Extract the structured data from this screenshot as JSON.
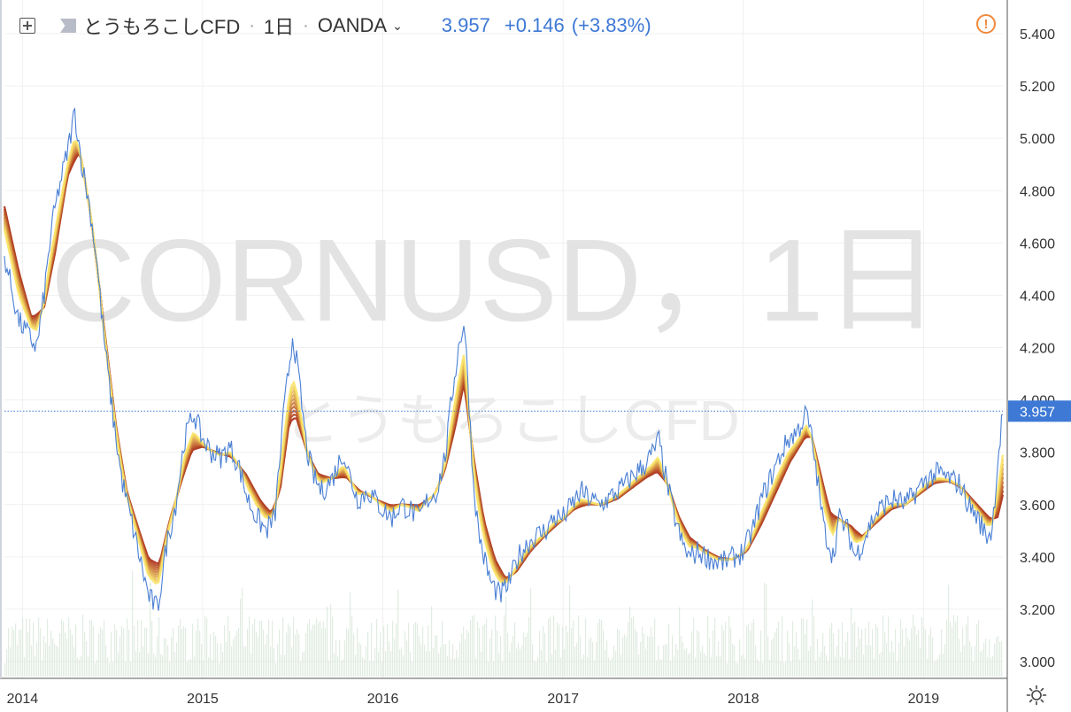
{
  "header": {
    "symbol_title": "とうもろこしCFD",
    "interval": "1日",
    "broker": "OANDA",
    "price": "3.957",
    "change": "+0.146",
    "change_pct": "(+3.83%)"
  },
  "watermark": {
    "symbol": "CORNUSD，1日",
    "description": "とうもろこしCFD"
  },
  "colors": {
    "price_line": "#4a7fd4",
    "ribbon_dark": "#a82a14",
    "ribbon_light": "#f8e36a",
    "price_label_bg": "#3d79d5",
    "volume": "#d9e7db"
  },
  "icons": {
    "add": "plus-box-icon",
    "flag": "flag-icon",
    "alert": "alert-icon",
    "settings": "gear-icon"
  },
  "chart_data": {
    "type": "line",
    "title": "とうもろこしCFD",
    "x_tick_labels": [
      "2014",
      "2015",
      "2016",
      "2017",
      "2018",
      "2019"
    ],
    "y_tick_labels": [
      "3.000",
      "3.200",
      "3.400",
      "3.600",
      "3.800",
      "4.000",
      "4.200",
      "4.400",
      "4.600",
      "4.800",
      "5.000",
      "5.200",
      "5.400"
    ],
    "ylim": [
      2.95,
      5.45
    ],
    "xlim": [
      2013.9,
      2019.44
    ],
    "last_price": 3.957,
    "grid": true,
    "series": [
      {
        "name": "price",
        "points": [
          [
            2013.9,
            4.55
          ],
          [
            2013.98,
            4.3
          ],
          [
            2014.03,
            4.25
          ],
          [
            2014.08,
            4.2
          ],
          [
            2014.12,
            4.4
          ],
          [
            2014.16,
            4.65
          ],
          [
            2014.2,
            4.8
          ],
          [
            2014.25,
            4.95
          ],
          [
            2014.29,
            5.1
          ],
          [
            2014.33,
            4.9
          ],
          [
            2014.37,
            4.75
          ],
          [
            2014.41,
            4.55
          ],
          [
            2014.45,
            4.25
          ],
          [
            2014.5,
            3.95
          ],
          [
            2014.55,
            3.7
          ],
          [
            2014.6,
            3.55
          ],
          [
            2014.65,
            3.4
          ],
          [
            2014.7,
            3.25
          ],
          [
            2014.75,
            3.2
          ],
          [
            2014.8,
            3.45
          ],
          [
            2014.85,
            3.6
          ],
          [
            2014.9,
            3.85
          ],
          [
            2014.95,
            3.95
          ],
          [
            2015.0,
            3.85
          ],
          [
            2015.05,
            3.8
          ],
          [
            2015.1,
            3.78
          ],
          [
            2015.15,
            3.82
          ],
          [
            2015.2,
            3.75
          ],
          [
            2015.25,
            3.62
          ],
          [
            2015.3,
            3.55
          ],
          [
            2015.35,
            3.5
          ],
          [
            2015.4,
            3.55
          ],
          [
            2015.45,
            3.95
          ],
          [
            2015.5,
            4.25
          ],
          [
            2015.53,
            4.1
          ],
          [
            2015.58,
            3.8
          ],
          [
            2015.62,
            3.7
          ],
          [
            2015.66,
            3.65
          ],
          [
            2015.72,
            3.7
          ],
          [
            2015.78,
            3.8
          ],
          [
            2015.82,
            3.7
          ],
          [
            2015.86,
            3.62
          ],
          [
            2015.92,
            3.65
          ],
          [
            2016.0,
            3.58
          ],
          [
            2016.05,
            3.55
          ],
          [
            2016.1,
            3.6
          ],
          [
            2016.15,
            3.58
          ],
          [
            2016.2,
            3.55
          ],
          [
            2016.25,
            3.62
          ],
          [
            2016.3,
            3.65
          ],
          [
            2016.35,
            3.8
          ],
          [
            2016.38,
            4.0
          ],
          [
            2016.42,
            4.2
          ],
          [
            2016.45,
            4.3
          ],
          [
            2016.47,
            4.1
          ],
          [
            2016.5,
            3.7
          ],
          [
            2016.53,
            3.5
          ],
          [
            2016.56,
            3.4
          ],
          [
            2016.6,
            3.3
          ],
          [
            2016.65,
            3.25
          ],
          [
            2016.7,
            3.3
          ],
          [
            2016.75,
            3.4
          ],
          [
            2016.8,
            3.45
          ],
          [
            2016.85,
            3.48
          ],
          [
            2016.9,
            3.5
          ],
          [
            2016.95,
            3.55
          ],
          [
            2017.0,
            3.55
          ],
          [
            2017.05,
            3.6
          ],
          [
            2017.1,
            3.65
          ],
          [
            2017.15,
            3.62
          ],
          [
            2017.2,
            3.6
          ],
          [
            2017.25,
            3.62
          ],
          [
            2017.3,
            3.65
          ],
          [
            2017.35,
            3.68
          ],
          [
            2017.4,
            3.72
          ],
          [
            2017.45,
            3.75
          ],
          [
            2017.5,
            3.8
          ],
          [
            2017.53,
            3.85
          ],
          [
            2017.57,
            3.7
          ],
          [
            2017.62,
            3.55
          ],
          [
            2017.66,
            3.45
          ],
          [
            2017.7,
            3.4
          ],
          [
            2017.75,
            3.42
          ],
          [
            2017.8,
            3.4
          ],
          [
            2017.85,
            3.38
          ],
          [
            2017.9,
            3.38
          ],
          [
            2017.95,
            3.4
          ],
          [
            2018.0,
            3.42
          ],
          [
            2018.05,
            3.5
          ],
          [
            2018.1,
            3.62
          ],
          [
            2018.15,
            3.7
          ],
          [
            2018.2,
            3.78
          ],
          [
            2018.25,
            3.85
          ],
          [
            2018.3,
            3.88
          ],
          [
            2018.35,
            3.95
          ],
          [
            2018.38,
            3.85
          ],
          [
            2018.42,
            3.65
          ],
          [
            2018.45,
            3.5
          ],
          [
            2018.5,
            3.4
          ],
          [
            2018.53,
            3.55
          ],
          [
            2018.58,
            3.5
          ],
          [
            2018.62,
            3.4
          ],
          [
            2018.66,
            3.45
          ],
          [
            2018.72,
            3.55
          ],
          [
            2018.78,
            3.6
          ],
          [
            2018.84,
            3.62
          ],
          [
            2018.9,
            3.6
          ],
          [
            2018.96,
            3.65
          ],
          [
            2019.02,
            3.7
          ],
          [
            2019.08,
            3.72
          ],
          [
            2019.14,
            3.7
          ],
          [
            2019.2,
            3.68
          ],
          [
            2019.25,
            3.6
          ],
          [
            2019.3,
            3.55
          ],
          [
            2019.35,
            3.48
          ],
          [
            2019.38,
            3.5
          ],
          [
            2019.41,
            3.75
          ],
          [
            2019.44,
            3.96
          ]
        ]
      },
      {
        "name": "ribbon_center",
        "points": [
          [
            2013.9,
            4.75
          ],
          [
            2013.98,
            4.5
          ],
          [
            2014.05,
            4.32
          ],
          [
            2014.12,
            4.35
          ],
          [
            2014.18,
            4.55
          ],
          [
            2014.25,
            4.85
          ],
          [
            2014.32,
            4.95
          ],
          [
            2014.38,
            4.7
          ],
          [
            2014.45,
            4.3
          ],
          [
            2014.52,
            3.9
          ],
          [
            2014.58,
            3.65
          ],
          [
            2014.65,
            3.5
          ],
          [
            2014.7,
            3.4
          ],
          [
            2014.76,
            3.38
          ],
          [
            2014.82,
            3.55
          ],
          [
            2014.88,
            3.68
          ],
          [
            2014.94,
            3.8
          ],
          [
            2015.0,
            3.82
          ],
          [
            2015.08,
            3.8
          ],
          [
            2015.16,
            3.78
          ],
          [
            2015.24,
            3.72
          ],
          [
            2015.32,
            3.62
          ],
          [
            2015.38,
            3.57
          ],
          [
            2015.43,
            3.65
          ],
          [
            2015.48,
            3.9
          ],
          [
            2015.52,
            3.92
          ],
          [
            2015.58,
            3.8
          ],
          [
            2015.64,
            3.72
          ],
          [
            2015.72,
            3.7
          ],
          [
            2015.8,
            3.7
          ],
          [
            2015.88,
            3.65
          ],
          [
            2015.96,
            3.62
          ],
          [
            2016.04,
            3.6
          ],
          [
            2016.12,
            3.6
          ],
          [
            2016.2,
            3.6
          ],
          [
            2016.28,
            3.63
          ],
          [
            2016.34,
            3.72
          ],
          [
            2016.4,
            3.88
          ],
          [
            2016.45,
            4.05
          ],
          [
            2016.5,
            3.8
          ],
          [
            2016.56,
            3.55
          ],
          [
            2016.62,
            3.4
          ],
          [
            2016.68,
            3.32
          ],
          [
            2016.74,
            3.34
          ],
          [
            2016.82,
            3.42
          ],
          [
            2016.9,
            3.48
          ],
          [
            2016.98,
            3.53
          ],
          [
            2017.06,
            3.58
          ],
          [
            2017.14,
            3.6
          ],
          [
            2017.22,
            3.6
          ],
          [
            2017.3,
            3.62
          ],
          [
            2017.38,
            3.66
          ],
          [
            2017.46,
            3.7
          ],
          [
            2017.52,
            3.72
          ],
          [
            2017.58,
            3.68
          ],
          [
            2017.64,
            3.56
          ],
          [
            2017.7,
            3.48
          ],
          [
            2017.78,
            3.43
          ],
          [
            2017.86,
            3.4
          ],
          [
            2017.94,
            3.39
          ],
          [
            2018.02,
            3.42
          ],
          [
            2018.1,
            3.52
          ],
          [
            2018.18,
            3.64
          ],
          [
            2018.26,
            3.76
          ],
          [
            2018.34,
            3.85
          ],
          [
            2018.38,
            3.86
          ],
          [
            2018.43,
            3.72
          ],
          [
            2018.48,
            3.58
          ],
          [
            2018.54,
            3.54
          ],
          [
            2018.6,
            3.52
          ],
          [
            2018.66,
            3.48
          ],
          [
            2018.74,
            3.53
          ],
          [
            2018.82,
            3.58
          ],
          [
            2018.9,
            3.6
          ],
          [
            2018.98,
            3.64
          ],
          [
            2019.06,
            3.68
          ],
          [
            2019.14,
            3.69
          ],
          [
            2019.22,
            3.66
          ],
          [
            2019.3,
            3.6
          ],
          [
            2019.37,
            3.55
          ],
          [
            2019.41,
            3.54
          ],
          [
            2019.44,
            3.62
          ]
        ]
      }
    ],
    "volume": {
      "color": "#d9e7db",
      "description_hint": "daily volume histogram at bottom"
    }
  }
}
